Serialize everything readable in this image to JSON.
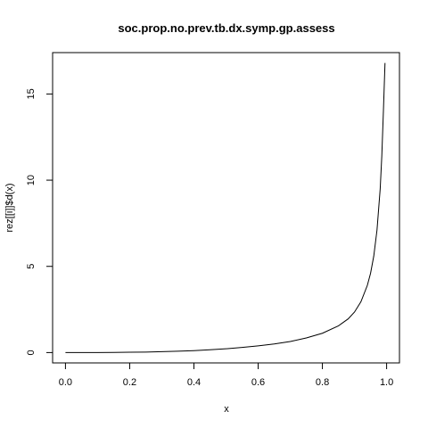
{
  "chart_data": {
    "type": "line",
    "title": "soc.prop.no.prev.tb.dx.symp.gp.assess",
    "xlabel": "x",
    "ylabel": "rez[[i]]$d(x)",
    "xlim": [
      -0.04,
      1.04
    ],
    "ylim": [
      -0.6,
      17.4
    ],
    "x_ticks": [
      0.0,
      0.2,
      0.4,
      0.6,
      0.8,
      1.0
    ],
    "x_tick_labels": [
      "0.0",
      "0.2",
      "0.4",
      "0.6",
      "0.8",
      "1.0"
    ],
    "y_ticks": [
      0,
      5,
      10,
      15
    ],
    "y_tick_labels": [
      "0",
      "5",
      "10",
      "15"
    ],
    "grid": false,
    "series": [
      {
        "color": "#000000",
        "x": [
          0.0,
          0.05,
          0.1,
          0.15,
          0.2,
          0.25,
          0.3,
          0.35,
          0.4,
          0.45,
          0.5,
          0.55,
          0.6,
          0.65,
          0.7,
          0.75,
          0.8,
          0.85,
          0.88,
          0.9,
          0.92,
          0.94,
          0.95,
          0.96,
          0.97,
          0.98,
          0.985,
          0.99,
          0.995
        ],
        "y": [
          0.0,
          0.0,
          0.0,
          0.01,
          0.02,
          0.03,
          0.05,
          0.08,
          0.11,
          0.16,
          0.22,
          0.3,
          0.39,
          0.5,
          0.64,
          0.85,
          1.12,
          1.55,
          1.95,
          2.35,
          2.95,
          3.9,
          4.6,
          5.6,
          7.1,
          9.5,
          11.4,
          14.0,
          16.8
        ]
      }
    ]
  }
}
